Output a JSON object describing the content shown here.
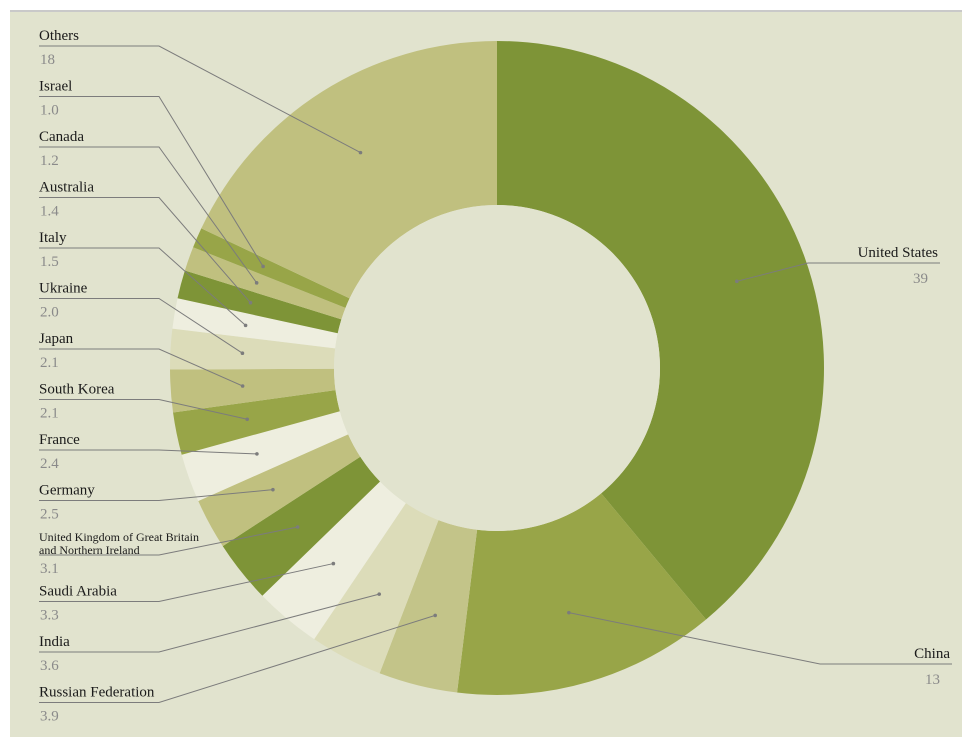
{
  "colors": {
    "background": "#e1e3ce",
    "palette": [
      "#7e9437",
      "#98a548",
      "#c3c489",
      "#dcdcb9",
      "#eeeedf",
      "#c0c07f",
      "#98a548",
      "#7e9437",
      "#c0c07f",
      "#dcdcb9",
      "#eeeedf",
      "#7e9437",
      "#c0c07f",
      "#98a548",
      "#c0c07f"
    ]
  },
  "chart_data": {
    "type": "pie",
    "donut": true,
    "title": "",
    "slices": [
      {
        "label": "United States",
        "value": 39,
        "value_text": "39",
        "color": "#7e9437"
      },
      {
        "label": "China",
        "value": 13,
        "value_text": "13",
        "color": "#98a548"
      },
      {
        "label": "Russian Federation",
        "value": 3.9,
        "value_text": "3.9",
        "color": "#c3c489"
      },
      {
        "label": "India",
        "value": 3.6,
        "value_text": "3.6",
        "color": "#dcdcb9"
      },
      {
        "label": "Saudi Arabia",
        "value": 3.3,
        "value_text": "3.3",
        "color": "#eeeedf"
      },
      {
        "label": "United Kingdom of Great Britain and Northern Ireland",
        "label_lines": [
          "United Kingdom of Great Britain",
          "and Northern Ireland"
        ],
        "value": 3.1,
        "value_text": "3.1",
        "color": "#7e9437"
      },
      {
        "label": "Germany",
        "value": 2.5,
        "value_text": "2.5",
        "color": "#c0c07f"
      },
      {
        "label": "France",
        "value": 2.4,
        "value_text": "2.4",
        "color": "#eeeedf"
      },
      {
        "label": "South Korea",
        "value": 2.1,
        "value_text": "2.1",
        "color": "#98a548"
      },
      {
        "label": "Japan",
        "value": 2.1,
        "value_text": "2.1",
        "color": "#c0c07f"
      },
      {
        "label": "Ukraine",
        "value": 2.0,
        "value_text": "2.0",
        "color": "#dcdcb9"
      },
      {
        "label": "Italy",
        "value": 1.5,
        "value_text": "1.5",
        "color": "#eeeedf"
      },
      {
        "label": "Australia",
        "value": 1.4,
        "value_text": "1.4",
        "color": "#7e9437"
      },
      {
        "label": "Canada",
        "value": 1.2,
        "value_text": "1.2",
        "color": "#c0c07f"
      },
      {
        "label": "Israel",
        "value": 1.0,
        "value_text": "1.0",
        "color": "#98a548"
      },
      {
        "label": "Others",
        "value": 18,
        "value_text": "18",
        "color": "#c0c07f"
      }
    ]
  }
}
